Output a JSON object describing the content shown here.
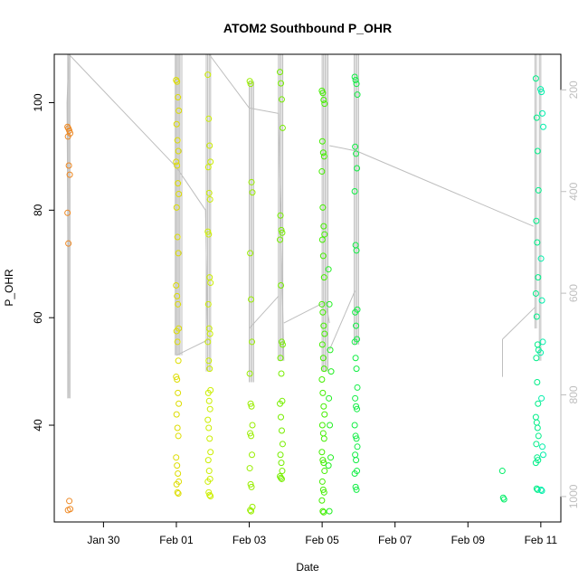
{
  "chart_data": {
    "type": "scatter",
    "title": "ATOM2 Southbound P_OHR",
    "xlabel": "Date",
    "ylabel": "P_OHR",
    "x_tick_labels": [
      "Jan 30",
      "Feb 01",
      "Feb 03",
      "Feb 05",
      "Feb 07",
      "Feb 09",
      "Feb 11"
    ],
    "y_ticks": [
      40,
      60,
      80,
      100
    ],
    "y_right_ticks": [
      200,
      400,
      600,
      800,
      1000
    ],
    "xlim_days": [
      -1.35,
      12.55
    ],
    "ylim": [
      22,
      109
    ],
    "y_right_range": [
      1050,
      130
    ],
    "x_reference": "Jan 30",
    "grid": false,
    "legend": "none",
    "point_marker": "open-circle",
    "line_color": "#bebebe",
    "axis_color": "#000000",
    "right_axis_color": "#bebebe",
    "series": [
      {
        "color": "#ee8822",
        "x": -0.95,
        "y": [
          95.5,
          95.2,
          94.8,
          94.3,
          93.7,
          88.3,
          86.6,
          79.5,
          73.8,
          25.9,
          24.4,
          24.2
        ]
      },
      {
        "color": "#dddd00",
        "x": 2.03,
        "y": [
          104.2,
          103.9,
          101.0,
          98.5,
          96.0,
          93.0,
          91.0,
          89.0,
          88.3,
          85.0,
          83.0,
          80.5,
          75.0,
          72.0,
          66.0,
          64.0,
          62.5,
          58.0,
          57.5,
          55.5,
          52.0,
          49.0,
          48.5,
          46.0,
          44.0,
          42.0,
          39.5,
          38.0,
          34.0,
          32.5,
          31.0,
          29.5,
          29.0,
          27.5,
          27.3
        ]
      },
      {
        "color": "#ccee00",
        "x": 2.9,
        "y": [
          105.2,
          97.0,
          92.0,
          89.0,
          88.0,
          83.2,
          82.0,
          76.0,
          75.5,
          67.5,
          66.5,
          62.5,
          58.0,
          57.0,
          55.5,
          52.0,
          50.5,
          46.5,
          46.0,
          44.5,
          43.0,
          41.0,
          39.5,
          37.5,
          35.0,
          33.5,
          31.5,
          30.0,
          29.5,
          27.5,
          27.0,
          26.8
        ]
      },
      {
        "color": "#99ee00",
        "x": 4.05,
        "y": [
          104.0,
          103.5,
          85.2,
          83.3,
          72.0,
          63.4,
          55.5,
          49.6,
          44.0,
          43.5,
          40.0,
          38.5,
          38.0,
          34.5,
          32.0,
          29.0,
          28.5,
          24.8,
          24.2,
          24.0
        ]
      },
      {
        "color": "#77ee00",
        "x": 4.88,
        "y": [
          105.7,
          103.6,
          100.6,
          95.3,
          79.0,
          76.3,
          75.8,
          74.5,
          66.0,
          55.5,
          55.0,
          52.5,
          49.6,
          44.5,
          44.0,
          41.5,
          39.0,
          36.5,
          34.5,
          33.0,
          31.5,
          30.5,
          30.2,
          30.0
        ]
      },
      {
        "color": "#44ee00",
        "x": 6.03,
        "y": [
          102.2,
          101.8,
          100.5,
          99.8,
          92.8,
          90.7,
          90.0,
          87.2,
          80.5,
          77.0,
          75.5,
          74.5,
          71.5,
          67.5,
          62.5,
          61.0,
          58.5,
          57.0,
          55.0,
          52.5,
          50.5,
          48.5,
          46.0,
          43.5,
          42.0,
          40.0,
          38.5,
          37.5,
          35.0,
          33.5,
          33.0,
          31.5,
          29.5,
          28.0,
          27.5,
          26.0,
          24.0,
          23.8
        ]
      },
      {
        "color": "#22ee22",
        "x": 6.21,
        "y": [
          69.0,
          62.5,
          54.0,
          50.0,
          45.0,
          40.0,
          34.0,
          32.5,
          24.0
        ]
      },
      {
        "color": "#11ee44",
        "x": 6.93,
        "y": [
          104.8,
          104.2,
          103.5,
          101.5,
          91.8,
          90.5,
          87.8,
          83.5,
          73.5,
          72.5,
          61.5,
          61.0,
          58.5,
          56.0,
          55.5,
          52.5,
          50.5,
          47.0,
          45.0,
          43.5,
          43.0,
          40.0,
          38.0,
          37.5,
          36.0,
          34.5,
          33.5,
          31.5,
          31.0,
          28.5,
          28.0
        ]
      },
      {
        "color": "#00ee66",
        "x": 10.98,
        "y": [
          31.5,
          26.5,
          26.2
        ]
      },
      {
        "color": "#00ee88",
        "x": 11.9,
        "y": [
          104.5,
          97.2,
          91.0,
          83.7,
          78.0,
          74.0,
          67.5,
          64.5,
          60.2,
          55.0,
          54.0,
          52.5,
          48.0,
          44.0,
          41.5,
          40.5,
          39.5,
          38.0,
          36.5,
          34.0,
          33.5,
          33.0,
          28.2,
          28.0
        ]
      },
      {
        "color": "#00eeaa",
        "x": 12.03,
        "y": [
          102.5,
          102.0,
          98.0,
          95.5,
          71.0,
          63.2,
          55.5,
          53.5,
          45.0,
          36.0,
          34.5,
          28.0,
          27.8
        ]
      }
    ],
    "profile_lines": [
      {
        "x": [
          -0.95,
          -0.95,
          -0.95,
          -1.0,
          -0.95
        ],
        "y": [
          109,
          60,
          45,
          100,
          109
        ]
      },
      {
        "x": [
          -0.95,
          2.0
        ],
        "y": [
          109,
          88
        ]
      },
      {
        "x": [
          2.0,
          2.8
        ],
        "y": [
          88,
          80
        ]
      },
      {
        "x": [
          2.8,
          2.86
        ],
        "y": [
          80,
          56
        ]
      },
      {
        "x": [
          2.0,
          2.9
        ],
        "y": [
          53,
          56
        ]
      },
      {
        "x": [
          2.9,
          4.0
        ],
        "y": [
          109,
          99
        ]
      },
      {
        "x": [
          4.0,
          4.8
        ],
        "y": [
          99,
          98
        ]
      },
      {
        "x": [
          4.0,
          4.8
        ],
        "y": [
          58,
          64
        ]
      },
      {
        "x": [
          4.8,
          4.95
        ],
        "y": [
          98,
          52
        ]
      },
      {
        "x": [
          4.95,
          6.1
        ],
        "y": [
          59,
          63
        ]
      },
      {
        "x": [
          6.1,
          6.2
        ],
        "y": [
          63,
          59
        ]
      },
      {
        "x": [
          6.2,
          6.95
        ],
        "y": [
          92,
          91
        ]
      },
      {
        "x": [
          6.95,
          11.8
        ],
        "y": [
          91,
          77
        ]
      },
      {
        "x": [
          6.2,
          6.9
        ],
        "y": [
          54,
          65
        ]
      },
      {
        "x": [
          10.95,
          10.95
        ],
        "y": [
          49,
          56
        ]
      },
      {
        "x": [
          10.95,
          11.85
        ],
        "y": [
          56,
          62
        ]
      }
    ],
    "profile_columns": [
      {
        "x": [
          -0.98,
          -0.92
        ],
        "y_top": 109,
        "y_bottom": 45
      },
      {
        "x": [
          1.97,
          2.0,
          2.03,
          2.07,
          2.1,
          2.15
        ],
        "y_top": 109,
        "y_bottom": 53
      },
      {
        "x": [
          2.82,
          2.86,
          2.9,
          2.94
        ],
        "y_top": 109,
        "y_bottom": 50
      },
      {
        "x": [
          4.0,
          4.04,
          4.08,
          4.12
        ],
        "y_top": 104,
        "y_bottom": 48
      },
      {
        "x": [
          4.8,
          4.84,
          4.88,
          4.92
        ],
        "y_top": 109,
        "y_bottom": 52
      },
      {
        "x": [
          6.0,
          6.04,
          6.08,
          6.12,
          6.16
        ],
        "y_top": 109,
        "y_bottom": 50
      },
      {
        "x": [
          6.88,
          6.92,
          6.96,
          7.0
        ],
        "y_top": 109,
        "y_bottom": 55
      },
      {
        "x": [
          11.84,
          11.88
        ],
        "y_top": 109,
        "y_bottom": 58
      },
      {
        "x": [
          11.96,
          12.0
        ],
        "y_top": 109,
        "y_bottom": 52
      }
    ]
  }
}
